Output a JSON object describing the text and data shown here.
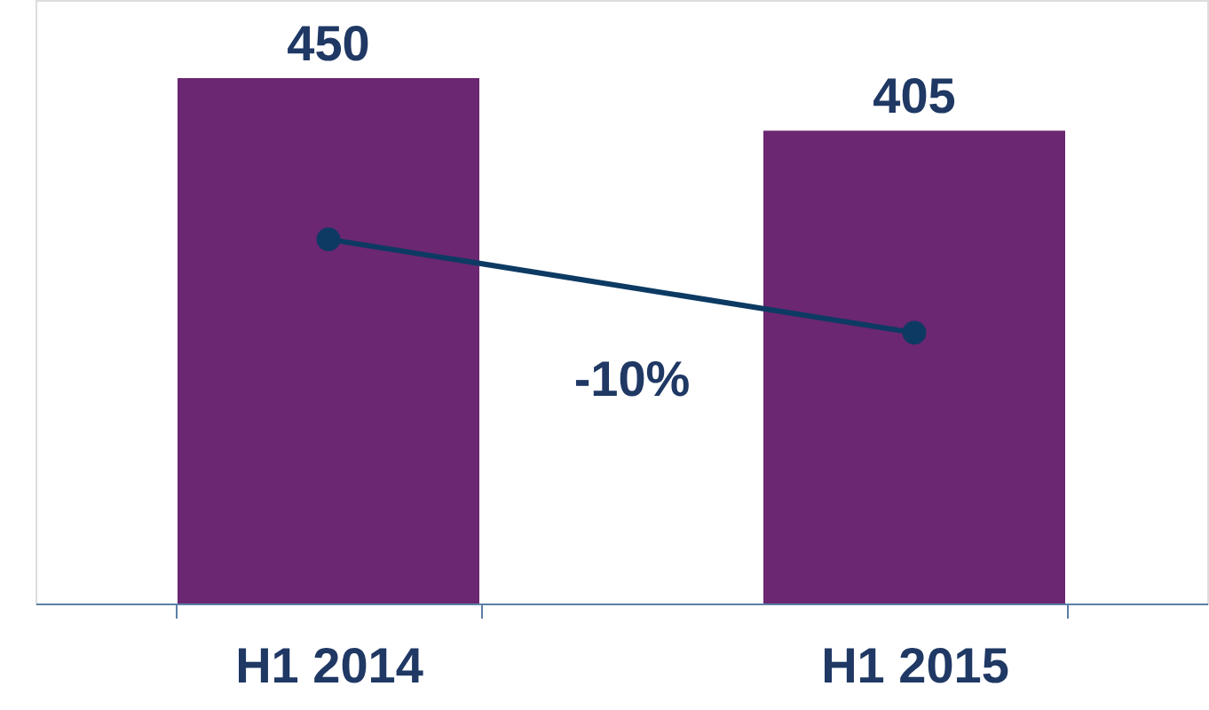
{
  "chart_data": {
    "type": "bar",
    "categories": [
      "H1 2014",
      "H1 2015"
    ],
    "series": [
      {
        "color": "#6b2771",
        "values": [
          450,
          405
        ]
      },
      {
        "type": "line",
        "color": "#0d3a63",
        "values": [
          312,
          232
        ],
        "value_labels": [
          null,
          null
        ]
      }
    ],
    "data_labels": true,
    "ylim": [
      0,
      517
    ],
    "marker": "circle",
    "tick_labels": "x",
    "annotations": [
      "-10%"
    ]
  }
}
